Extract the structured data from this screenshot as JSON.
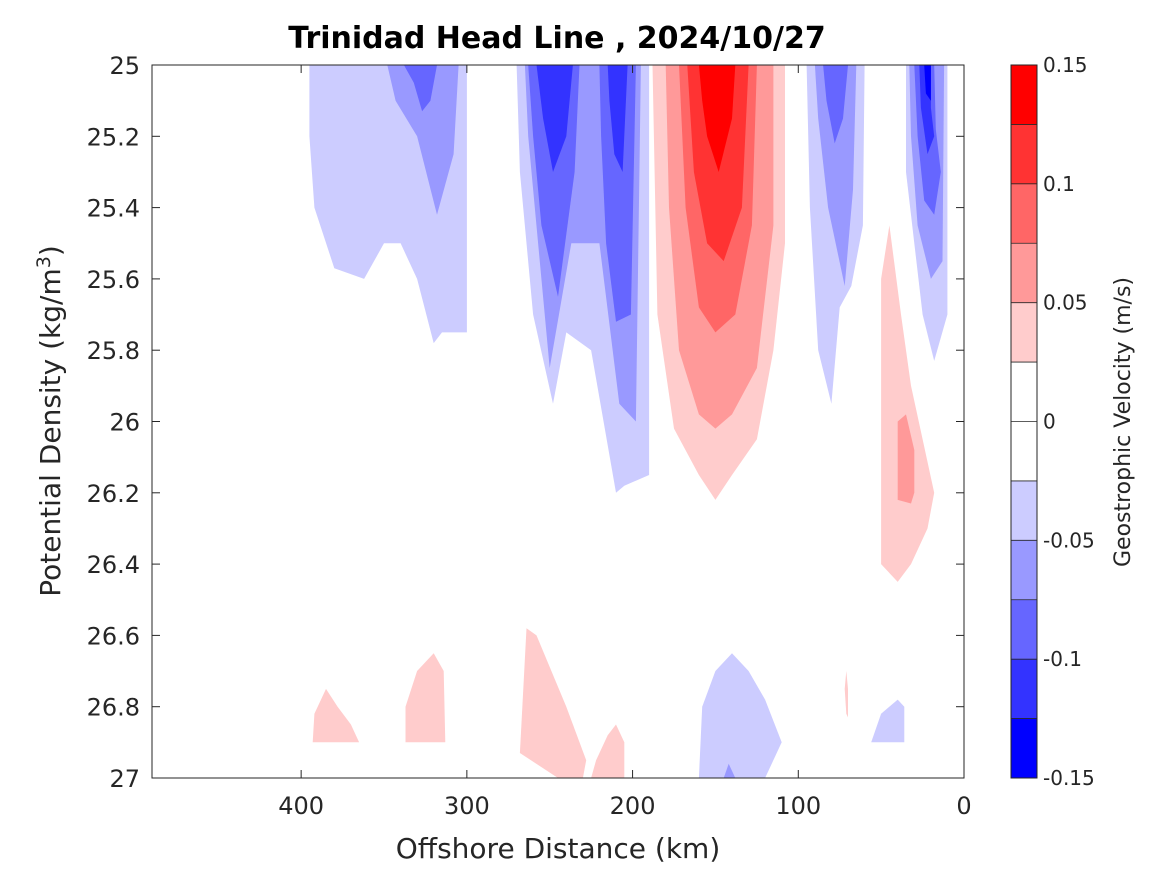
{
  "chart_data": {
    "type": "contour",
    "title": "Trinidad Head Line , 2024/10/27",
    "xlabel": "Offshore Distance (km)",
    "ylabel_main": "Potential Density (kg/m",
    "ylabel_sup": "3",
    "ylabel_close": ")",
    "xlim": [
      490,
      0
    ],
    "ylim": [
      25,
      27
    ],
    "x_reversed": true,
    "y_reversed": true,
    "xticks": [
      400,
      300,
      200,
      100,
      0
    ],
    "yticks": [
      25,
      25.2,
      25.4,
      25.6,
      25.8,
      26,
      26.2,
      26.4,
      26.6,
      26.8,
      27
    ],
    "grid": false,
    "colorbar": {
      "label": "Geostrophic Velocity (m/s)",
      "range": [
        -0.15,
        0.15
      ],
      "tick_values": [
        0.15,
        0.1,
        0.05,
        0,
        -0.05,
        -0.1,
        -0.15
      ],
      "tick_labels": [
        "0.15",
        "0.1",
        "0.05",
        "0",
        "-0.05",
        "-0.1",
        "-0.15"
      ],
      "levels": [
        {
          "from": 0.125,
          "to": 0.15,
          "color": "#ff0000"
        },
        {
          "from": 0.1,
          "to": 0.125,
          "color": "#ff3333"
        },
        {
          "from": 0.075,
          "to": 0.1,
          "color": "#ff6666"
        },
        {
          "from": 0.05,
          "to": 0.075,
          "color": "#ff9999"
        },
        {
          "from": 0.025,
          "to": 0.05,
          "color": "#ffcccc"
        },
        {
          "from": 0.0,
          "to": 0.025,
          "color": "#ffffff"
        },
        {
          "from": -0.025,
          "to": 0.0,
          "color": "#ffffff"
        },
        {
          "from": -0.05,
          "to": -0.025,
          "color": "#ccccff"
        },
        {
          "from": -0.075,
          "to": -0.05,
          "color": "#9999ff"
        },
        {
          "from": -0.1,
          "to": -0.075,
          "color": "#6666ff"
        },
        {
          "from": -0.125,
          "to": -0.1,
          "color": "#3333ff"
        },
        {
          "from": -0.15,
          "to": -0.125,
          "color": "#0000ff"
        }
      ]
    },
    "regions": [
      {
        "name": "far-offshore-neg-light",
        "color": "#ccccff",
        "points": [
          [
            395,
            25
          ],
          [
            300,
            25
          ],
          [
            300,
            25.75
          ],
          [
            315,
            25.75
          ],
          [
            320,
            25.78
          ],
          [
            330,
            25.6
          ],
          [
            340,
            25.5
          ],
          [
            350,
            25.5
          ],
          [
            362,
            25.6
          ],
          [
            380,
            25.57
          ],
          [
            392,
            25.4
          ],
          [
            395,
            25.2
          ]
        ]
      },
      {
        "name": "far-offshore-neg-mid",
        "color": "#9999ff",
        "points": [
          [
            348,
            25
          ],
          [
            305,
            25
          ],
          [
            308,
            25.25
          ],
          [
            318,
            25.42
          ],
          [
            330,
            25.2
          ],
          [
            343,
            25.1
          ]
        ]
      },
      {
        "name": "far-offshore-neg-dark",
        "color": "#6666ff",
        "points": [
          [
            338,
            25
          ],
          [
            318,
            25
          ],
          [
            322,
            25.1
          ],
          [
            327,
            25.13
          ],
          [
            332,
            25.05
          ]
        ]
      },
      {
        "name": "mid-neg-light",
        "color": "#ccccff",
        "points": [
          [
            270,
            25
          ],
          [
            190,
            25
          ],
          [
            190,
            26.15
          ],
          [
            205,
            26.18
          ],
          [
            210,
            26.2
          ],
          [
            225,
            25.8
          ],
          [
            240,
            25.75
          ],
          [
            248,
            25.95
          ],
          [
            260,
            25.7
          ],
          [
            268,
            25.3
          ]
        ]
      },
      {
        "name": "mid-neg-mid",
        "color": "#9999ff",
        "points": [
          [
            265,
            25
          ],
          [
            195,
            25
          ],
          [
            198,
            26
          ],
          [
            208,
            25.95
          ],
          [
            220,
            25.5
          ],
          [
            237,
            25.5
          ],
          [
            250,
            25.85
          ],
          [
            257,
            25.5
          ],
          [
            263,
            25.2
          ]
        ]
      },
      {
        "name": "mid-neg-dark",
        "color": "#6666ff",
        "points": [
          [
            263,
            25
          ],
          [
            232,
            25
          ],
          [
            235,
            25.3
          ],
          [
            245,
            25.65
          ],
          [
            255,
            25.45
          ],
          [
            260,
            25.2
          ]
        ]
      },
      {
        "name": "mid-neg-dark-right",
        "color": "#6666ff",
        "points": [
          [
            220,
            25
          ],
          [
            198,
            25
          ],
          [
            201,
            25.7
          ],
          [
            210,
            25.72
          ],
          [
            216,
            25.5
          ],
          [
            219,
            25.2
          ]
        ]
      },
      {
        "name": "mid-neg-darker",
        "color": "#3333ff",
        "points": [
          [
            258,
            25
          ],
          [
            236,
            25
          ],
          [
            240,
            25.2
          ],
          [
            248,
            25.3
          ],
          [
            254,
            25.15
          ]
        ]
      },
      {
        "name": "mid-neg-darker-right",
        "color": "#3333ff",
        "points": [
          [
            215,
            25
          ],
          [
            203,
            25
          ],
          [
            206,
            25.3
          ],
          [
            211,
            25.25
          ],
          [
            214,
            25.1
          ]
        ]
      },
      {
        "name": "center-pos-light",
        "color": "#ffcccc",
        "points": [
          [
            188,
            25
          ],
          [
            108,
            25
          ],
          [
            108,
            25.5
          ],
          [
            115,
            25.8
          ],
          [
            125,
            26.05
          ],
          [
            140,
            26.15
          ],
          [
            150,
            26.22
          ],
          [
            160,
            26.15
          ],
          [
            175,
            26.02
          ],
          [
            185,
            25.7
          ]
        ]
      },
      {
        "name": "center-pos-mid",
        "color": "#ff9999",
        "points": [
          [
            180,
            25
          ],
          [
            115,
            25
          ],
          [
            115,
            25.45
          ],
          [
            125,
            25.85
          ],
          [
            140,
            25.98
          ],
          [
            150,
            26.02
          ],
          [
            160,
            25.98
          ],
          [
            172,
            25.8
          ],
          [
            178,
            25.4
          ]
        ]
      },
      {
        "name": "center-pos-strong",
        "color": "#ff6666",
        "points": [
          [
            172,
            25
          ],
          [
            125,
            25
          ],
          [
            128,
            25.45
          ],
          [
            138,
            25.7
          ],
          [
            150,
            25.75
          ],
          [
            160,
            25.68
          ],
          [
            168,
            25.4
          ]
        ]
      },
      {
        "name": "center-pos-stronger",
        "color": "#ff3333",
        "points": [
          [
            167,
            25
          ],
          [
            130,
            25
          ],
          [
            134,
            25.4
          ],
          [
            145,
            25.55
          ],
          [
            155,
            25.5
          ],
          [
            163,
            25.3
          ]
        ]
      },
      {
        "name": "center-pos-max",
        "color": "#ff0000",
        "points": [
          [
            160,
            25
          ],
          [
            138,
            25
          ],
          [
            140,
            25.15
          ],
          [
            148,
            25.3
          ],
          [
            155,
            25.2
          ],
          [
            158,
            25.1
          ]
        ]
      },
      {
        "name": "near-neg-light",
        "color": "#ccccff",
        "points": [
          [
            95,
            25
          ],
          [
            60,
            25
          ],
          [
            61,
            25.45
          ],
          [
            68,
            25.62
          ],
          [
            75,
            25.68
          ],
          [
            80,
            25.95
          ],
          [
            88,
            25.8
          ],
          [
            93,
            25.4
          ]
        ]
      },
      {
        "name": "near-neg-mid",
        "color": "#9999ff",
        "points": [
          [
            90,
            25
          ],
          [
            65,
            25
          ],
          [
            67,
            25.35
          ],
          [
            72,
            25.62
          ],
          [
            82,
            25.4
          ],
          [
            88,
            25.15
          ]
        ]
      },
      {
        "name": "near-neg-dark",
        "color": "#6666ff",
        "points": [
          [
            85,
            25
          ],
          [
            70,
            25
          ],
          [
            73,
            25.15
          ],
          [
            78,
            25.22
          ],
          [
            83,
            25.1
          ]
        ]
      },
      {
        "name": "coast-neg-light",
        "color": "#ccccff",
        "points": [
          [
            35,
            25
          ],
          [
            10,
            25
          ],
          [
            10,
            25.7
          ],
          [
            18,
            25.83
          ],
          [
            25,
            25.7
          ],
          [
            35,
            25.3
          ]
        ]
      },
      {
        "name": "coast-neg-mid",
        "color": "#9999ff",
        "points": [
          [
            33,
            25
          ],
          [
            12,
            25
          ],
          [
            13,
            25.55
          ],
          [
            20,
            25.6
          ],
          [
            28,
            25.45
          ],
          [
            32,
            25.2
          ]
        ]
      },
      {
        "name": "coast-neg-dark",
        "color": "#6666ff",
        "points": [
          [
            30,
            25
          ],
          [
            18,
            25
          ],
          [
            17,
            25.18
          ],
          [
            14,
            25.3
          ],
          [
            18,
            25.42
          ],
          [
            24,
            25.38
          ],
          [
            28,
            25.2
          ]
        ]
      },
      {
        "name": "coast-neg-darker",
        "color": "#3333ff",
        "points": [
          [
            27,
            25
          ],
          [
            20,
            25
          ],
          [
            20,
            25.12
          ],
          [
            18,
            25.2
          ],
          [
            22,
            25.25
          ],
          [
            26,
            25.12
          ]
        ]
      },
      {
        "name": "coast-neg-max",
        "color": "#0000ff",
        "points": [
          [
            24,
            25
          ],
          [
            20,
            25
          ],
          [
            20,
            25.1
          ],
          [
            23,
            25.08
          ]
        ]
      },
      {
        "name": "coast-pos-light",
        "color": "#ffcccc",
        "points": [
          [
            50,
            25.6
          ],
          [
            45,
            25.45
          ],
          [
            38,
            25.7
          ],
          [
            32,
            25.9
          ],
          [
            25,
            26.05
          ],
          [
            18,
            26.2
          ],
          [
            22,
            26.3
          ],
          [
            32,
            26.4
          ],
          [
            40,
            26.45
          ],
          [
            50,
            26.4
          ],
          [
            50,
            26.0
          ]
        ]
      },
      {
        "name": "coast-pos-mid",
        "color": "#ff9999",
        "points": [
          [
            40,
            26.0
          ],
          [
            35,
            25.98
          ],
          [
            30,
            26.08
          ],
          [
            30,
            26.2
          ],
          [
            32,
            26.23
          ],
          [
            40,
            26.22
          ]
        ]
      },
      {
        "name": "deep-pos-1",
        "color": "#ffcccc",
        "points": [
          [
            393,
            26.9
          ],
          [
            365,
            26.9
          ],
          [
            370,
            26.85
          ],
          [
            378,
            26.8
          ],
          [
            385,
            26.75
          ],
          [
            392,
            26.82
          ]
        ]
      },
      {
        "name": "deep-pos-2",
        "color": "#ffcccc",
        "points": [
          [
            337,
            26.9
          ],
          [
            313,
            26.9
          ],
          [
            314,
            26.7
          ],
          [
            320,
            26.65
          ],
          [
            330,
            26.7
          ],
          [
            337,
            26.8
          ]
        ]
      },
      {
        "name": "deep-pos-3",
        "color": "#ffcccc",
        "points": [
          [
            268,
            26.93
          ],
          [
            245,
            27.0
          ],
          [
            230,
            27.0
          ],
          [
            228,
            26.95
          ],
          [
            240,
            26.8
          ],
          [
            258,
            26.6
          ],
          [
            264,
            26.58
          ]
        ]
      },
      {
        "name": "deep-pos-4",
        "color": "#ffcccc",
        "points": [
          [
            225,
            27.0
          ],
          [
            205,
            27.0
          ],
          [
            205,
            26.9
          ],
          [
            210,
            26.85
          ],
          [
            215,
            26.88
          ],
          [
            222,
            26.95
          ]
        ]
      },
      {
        "name": "deep-pos-5",
        "color": "#ffcccc",
        "points": [
          [
            71,
            26.7
          ],
          [
            70,
            26.75
          ],
          [
            70,
            26.83
          ],
          [
            71,
            26.82
          ],
          [
            72,
            26.75
          ]
        ]
      },
      {
        "name": "deep-neg-1",
        "color": "#ccccff",
        "points": [
          [
            160,
            27.0
          ],
          [
            120,
            27.0
          ],
          [
            110,
            26.9
          ],
          [
            120,
            26.78
          ],
          [
            130,
            26.7
          ],
          [
            140,
            26.65
          ],
          [
            150,
            26.7
          ],
          [
            158,
            26.8
          ]
        ]
      },
      {
        "name": "deep-neg-1-core",
        "color": "#9999ff",
        "points": [
          [
            145,
            27.0
          ],
          [
            138,
            27.0
          ],
          [
            142,
            26.96
          ]
        ]
      },
      {
        "name": "deep-neg-2",
        "color": "#ccccff",
        "points": [
          [
            56,
            26.9
          ],
          [
            36,
            26.9
          ],
          [
            36,
            26.8
          ],
          [
            40,
            26.78
          ],
          [
            50,
            26.82
          ]
        ]
      }
    ]
  }
}
